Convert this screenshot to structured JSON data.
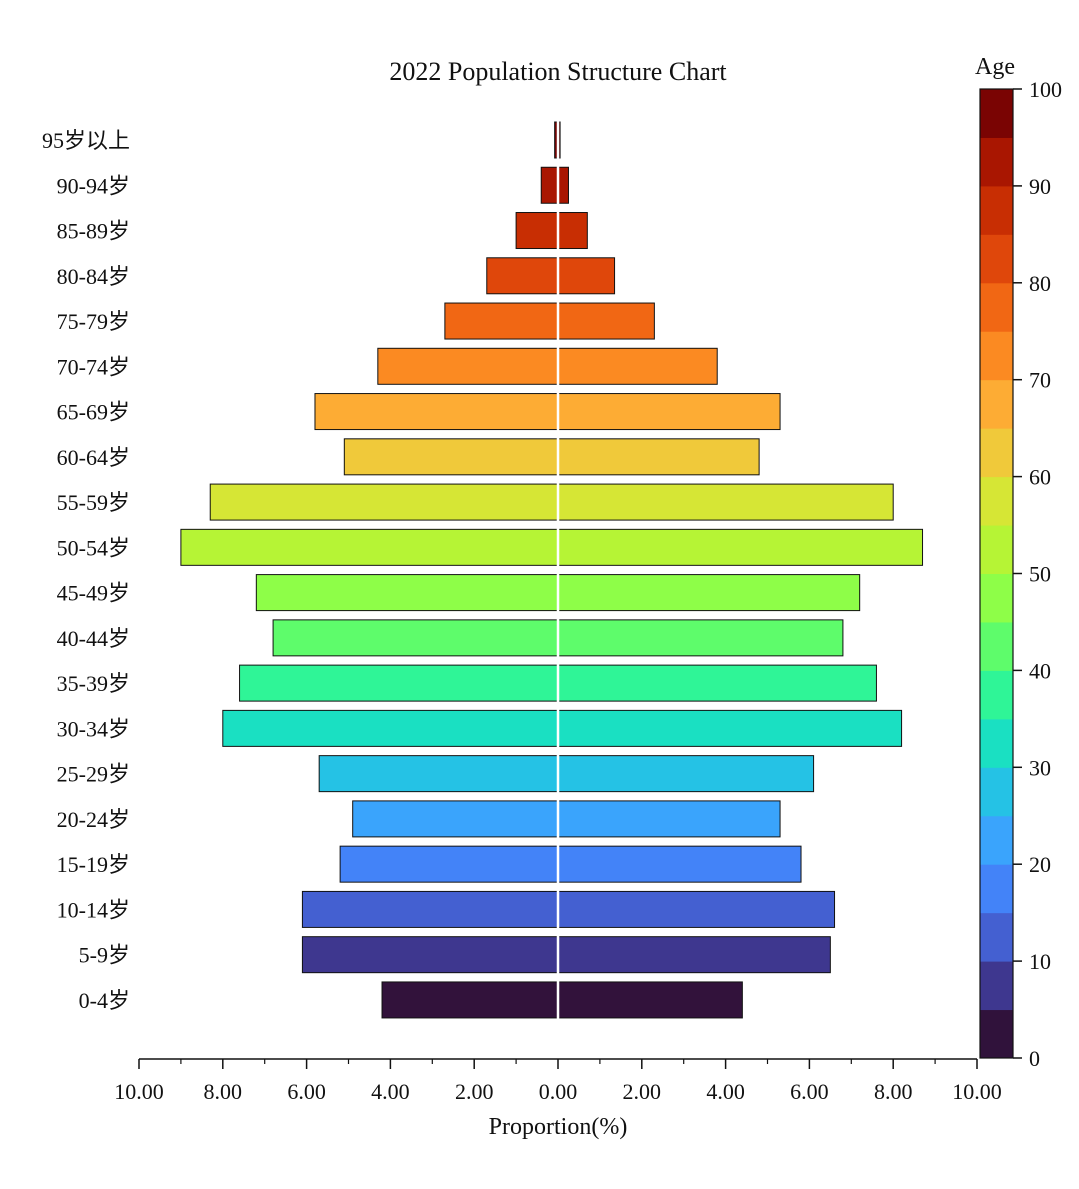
{
  "chart_data": {
    "type": "bar",
    "title": "2022 Population Structure Chart",
    "xlabel": "Proportion(%)",
    "xlim": [
      -10,
      10
    ],
    "x_ticks": [
      "10.00",
      "8.00",
      "6.00",
      "4.00",
      "2.00",
      "0.00",
      "2.00",
      "4.00",
      "6.00",
      "8.00",
      "10.00"
    ],
    "categories": [
      "0-4岁",
      "5-9岁",
      "10-14岁",
      "15-19岁",
      "20-24岁",
      "25-29岁",
      "30-34岁",
      "35-39岁",
      "40-44岁",
      "45-49岁",
      "50-54岁",
      "55-59岁",
      "60-64岁",
      "65-69岁",
      "70-74岁",
      "75-79岁",
      "80-84岁",
      "85-89岁",
      "90-94岁",
      "95岁以上"
    ],
    "series": [
      {
        "values": [
          4.2,
          6.1,
          6.1,
          5.2,
          4.9,
          5.7,
          8.0,
          7.6,
          6.8,
          7.2,
          9.0,
          8.3,
          5.1,
          5.8,
          4.3,
          2.7,
          1.7,
          1.0,
          0.4,
          0.08
        ]
      },
      {
        "values": [
          4.4,
          6.5,
          6.6,
          5.8,
          5.3,
          6.1,
          8.2,
          7.6,
          6.8,
          7.2,
          8.7,
          8.0,
          4.8,
          5.3,
          3.8,
          2.3,
          1.35,
          0.7,
          0.25,
          0.05
        ]
      }
    ],
    "bar_colors": [
      "#32123b",
      "#3e378f",
      "#4460d1",
      "#4383f8",
      "#3aa4fc",
      "#25c2e5",
      "#1ae0c2",
      "#2ff597",
      "#5efc6b",
      "#8efe48",
      "#b6f435",
      "#d6e635",
      "#f0c93a",
      "#fdac34",
      "#fb8a22",
      "#f16714",
      "#df470b",
      "#c82e03",
      "#a91601",
      "#7a0403"
    ],
    "colorbar": {
      "title": "Age",
      "ticks": [
        "0",
        "10",
        "20",
        "30",
        "40",
        "50",
        "60",
        "70",
        "80",
        "90",
        "100"
      ],
      "range": [
        0,
        100
      ],
      "colors": [
        "#30123b",
        "#3e378f",
        "#4460d1",
        "#4383f8",
        "#3aa4fc",
        "#25c2e5",
        "#1ae0c2",
        "#2ff597",
        "#5efc6b",
        "#8efe48",
        "#b6f435",
        "#d6e635",
        "#f0c93a",
        "#fdac34",
        "#fb8a22",
        "#f16714",
        "#df470b",
        "#c82e03",
        "#a91601",
        "#7a0403"
      ]
    },
    "legend": "none",
    "grid": false
  }
}
